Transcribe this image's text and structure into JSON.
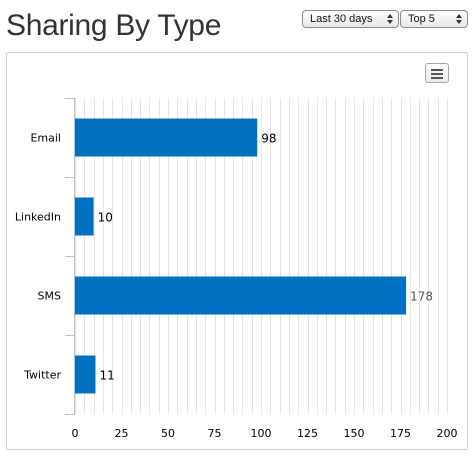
{
  "header": {
    "title": "Sharing By Type"
  },
  "filters": {
    "range_label": "Last 30 days",
    "limit_label": "Top 5"
  },
  "chart_menu": {
    "icon": "hamburger-menu-icon"
  },
  "colors": {
    "bar": "#0070c0",
    "grid": "#e6e6e6",
    "axis": "#c0c0c0",
    "text": "#000000"
  },
  "chart_data": {
    "type": "bar",
    "orientation": "horizontal",
    "categories": [
      "Email",
      "LinkedIn",
      "SMS",
      "Twitter"
    ],
    "values": [
      98,
      10,
      178,
      11
    ],
    "data_labels": [
      "98",
      "10",
      "178",
      "11"
    ],
    "xlim": [
      0,
      200
    ],
    "xticks": [
      0,
      25,
      50,
      75,
      100,
      125,
      150,
      175,
      200
    ],
    "minor_grid_step": 5,
    "grid": true,
    "legend": "none",
    "title": "",
    "xlabel": "",
    "ylabel": ""
  }
}
